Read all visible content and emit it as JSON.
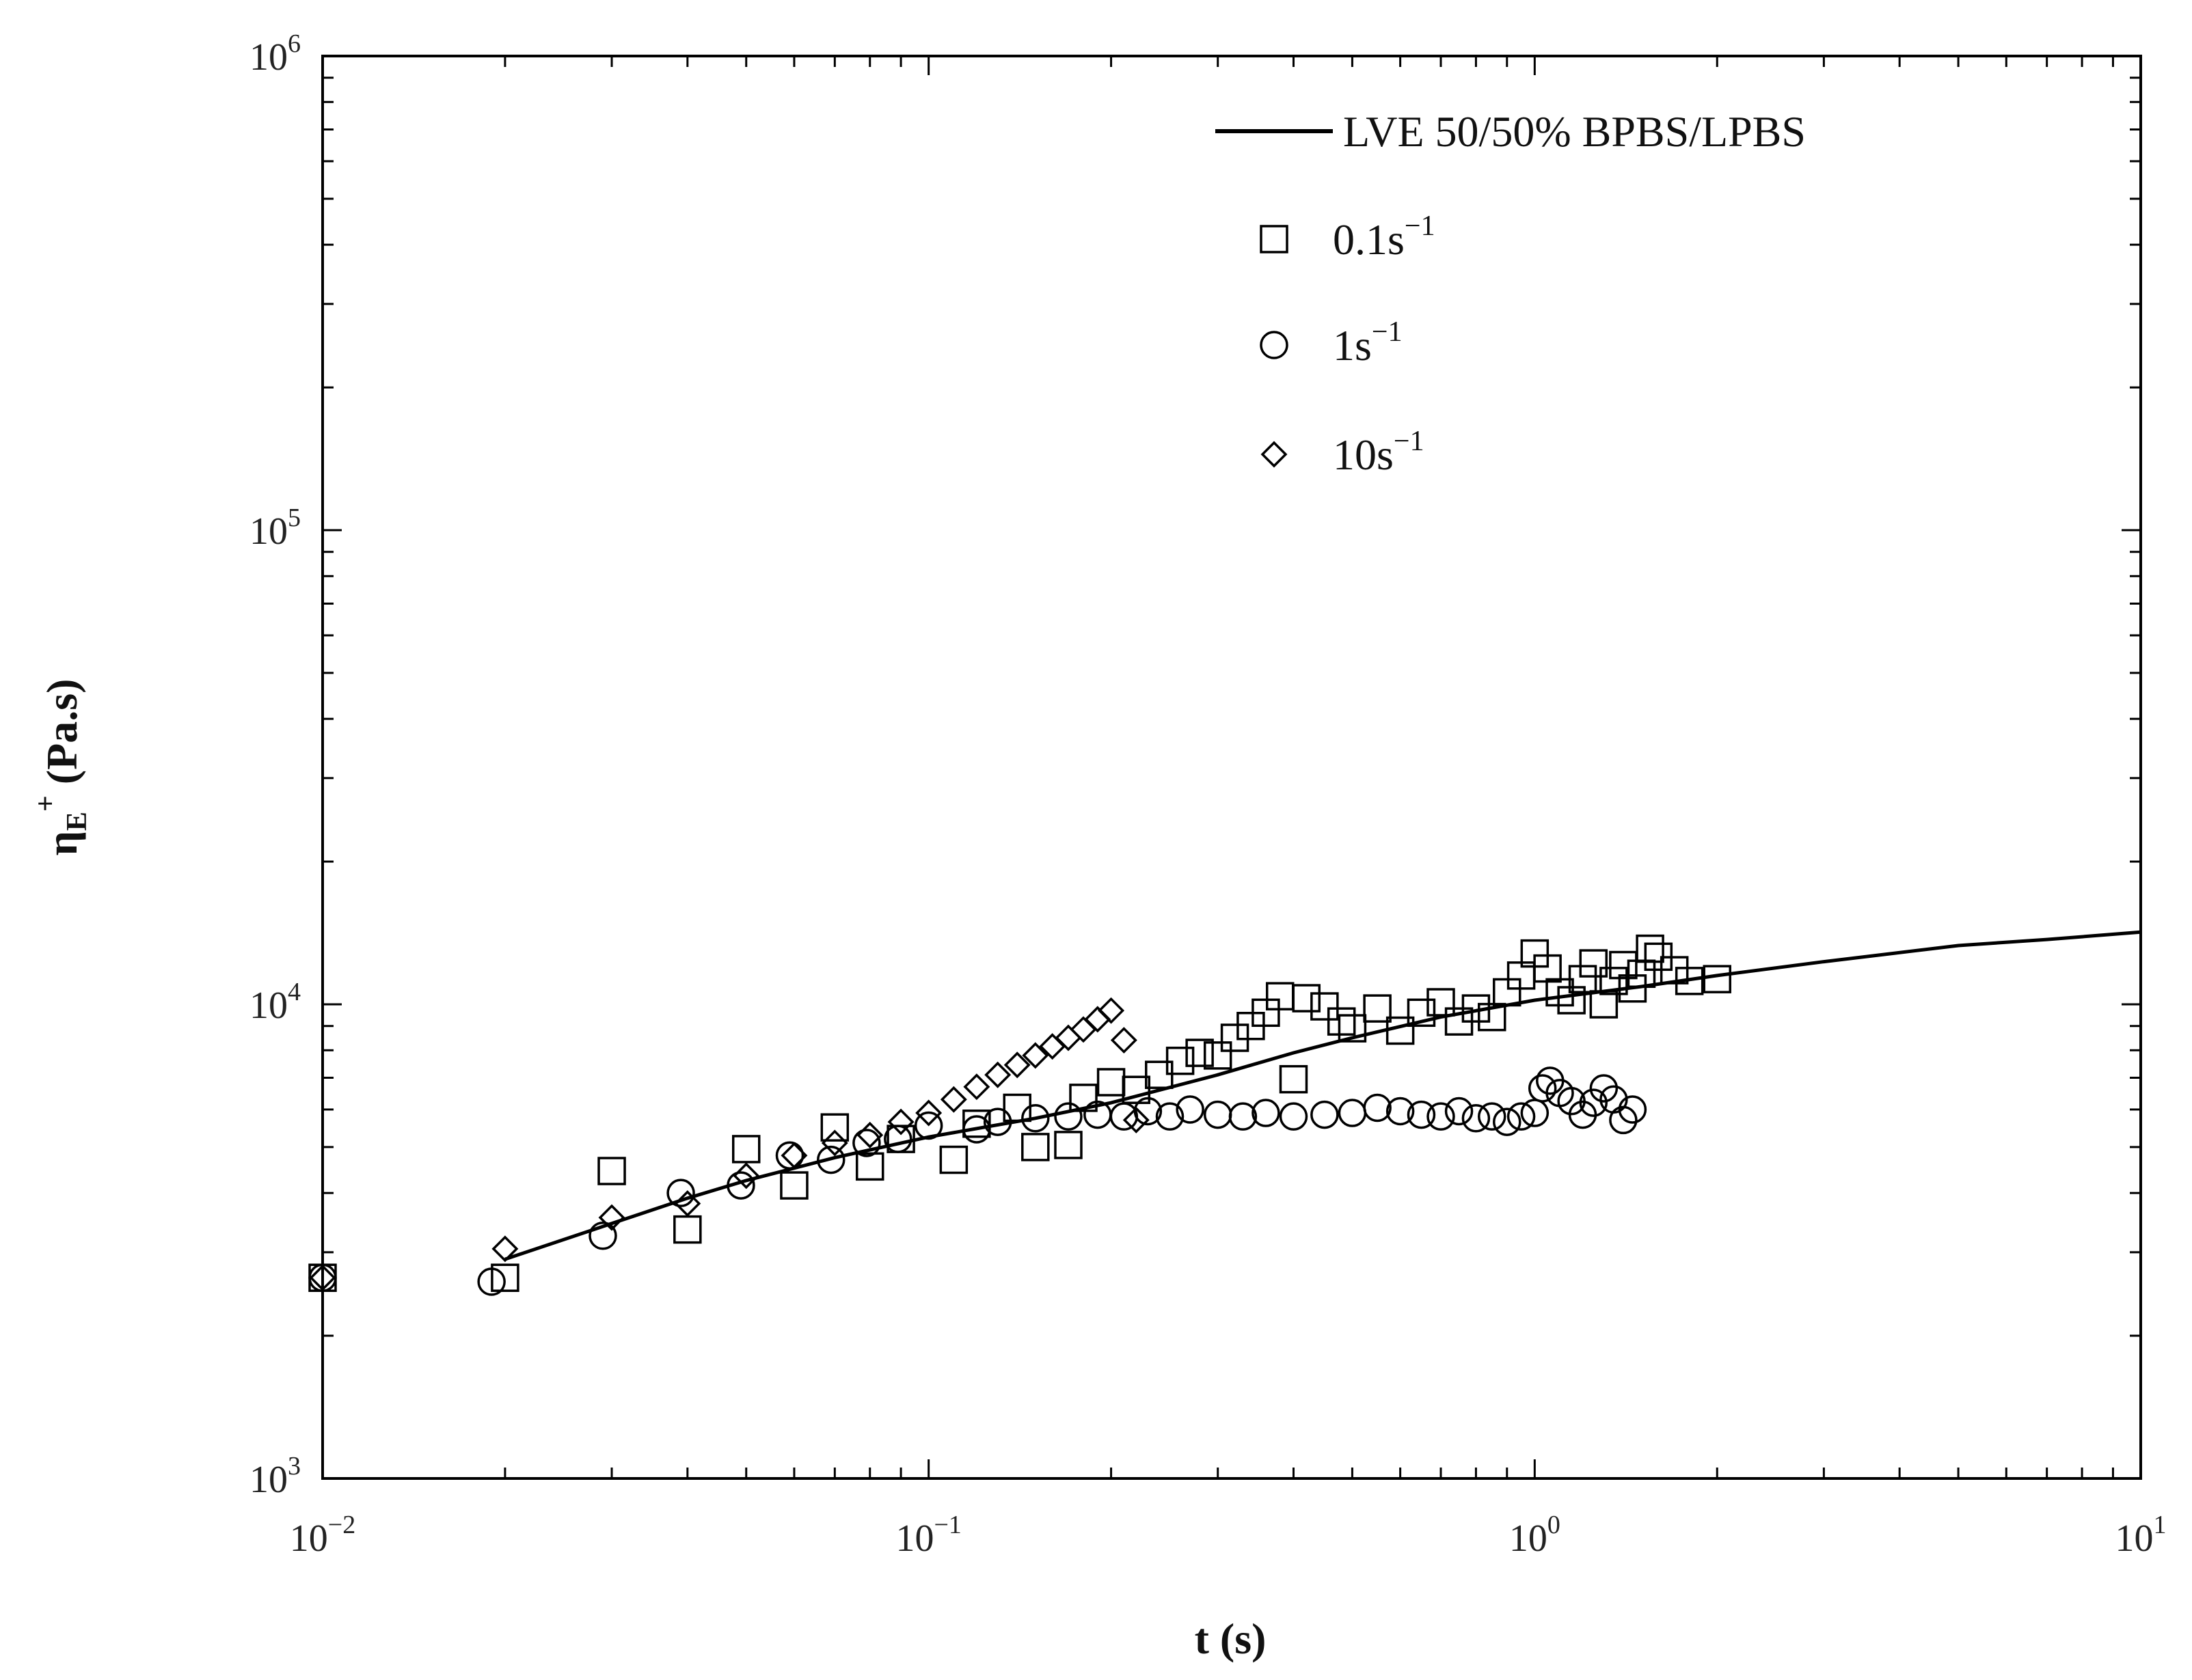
{
  "chart_data": {
    "type": "scatter",
    "title": "",
    "xlabel": "t (s)",
    "ylabel": {
      "main": "η",
      "sub": "E",
      "sup": "+",
      "unit": " (Pa.s)"
    },
    "x_scale": "log",
    "y_scale": "log",
    "xlim": [
      0.01,
      10
    ],
    "ylim": [
      1000,
      1000000
    ],
    "grid": false,
    "legend_position": "top-right",
    "x_ticks": [
      {
        "value": 0.01,
        "base": "10",
        "exp": "−2"
      },
      {
        "value": 0.1,
        "base": "10",
        "exp": "−1"
      },
      {
        "value": 1,
        "base": "10",
        "exp": "0"
      },
      {
        "value": 10,
        "base": "10",
        "exp": "1"
      }
    ],
    "y_ticks": [
      {
        "value": 1000,
        "base": "10",
        "exp": "3"
      },
      {
        "value": 10000,
        "base": "10",
        "exp": "4"
      },
      {
        "value": 100000,
        "base": "10",
        "exp": "5"
      },
      {
        "value": 1000000,
        "base": "10",
        "exp": "6"
      }
    ],
    "series": [
      {
        "name": "LVE 50/50% BPBS/LPBS",
        "kind": "line",
        "color": "#000000",
        "points": [
          [
            0.02,
            2900
          ],
          [
            0.03,
            3450
          ],
          [
            0.04,
            3900
          ],
          [
            0.05,
            4250
          ],
          [
            0.07,
            4750
          ],
          [
            0.1,
            5250
          ],
          [
            0.15,
            5750
          ],
          [
            0.2,
            6200
          ],
          [
            0.3,
            7100
          ],
          [
            0.4,
            7900
          ],
          [
            0.5,
            8500
          ],
          [
            0.7,
            9400
          ],
          [
            1,
            10200
          ],
          [
            1.5,
            10900
          ],
          [
            2,
            11500
          ],
          [
            3,
            12300
          ],
          [
            5,
            13300
          ],
          [
            7,
            13700
          ],
          [
            10,
            14200
          ]
        ]
      },
      {
        "name_main": "0.1s",
        "name_sup": "−1",
        "kind": "square",
        "color": "#000000",
        "points": [
          [
            0.01,
            2650
          ],
          [
            0.02,
            2650
          ],
          [
            0.03,
            4450
          ],
          [
            0.04,
            3350
          ],
          [
            0.05,
            4950
          ],
          [
            0.06,
            4150
          ],
          [
            0.07,
            5500
          ],
          [
            0.08,
            4550
          ],
          [
            0.09,
            5200
          ],
          [
            0.11,
            4700
          ],
          [
            0.12,
            5600
          ],
          [
            0.14,
            6050
          ],
          [
            0.15,
            5000
          ],
          [
            0.17,
            5050
          ],
          [
            0.18,
            6350
          ],
          [
            0.2,
            6850
          ],
          [
            0.22,
            6600
          ],
          [
            0.24,
            7100
          ],
          [
            0.26,
            7600
          ],
          [
            0.28,
            7900
          ],
          [
            0.3,
            7800
          ],
          [
            0.32,
            8500
          ],
          [
            0.34,
            9000
          ],
          [
            0.36,
            9600
          ],
          [
            0.38,
            10400
          ],
          [
            0.4,
            6950
          ],
          [
            0.42,
            10300
          ],
          [
            0.45,
            9900
          ],
          [
            0.48,
            9200
          ],
          [
            0.5,
            8900
          ],
          [
            0.55,
            9800
          ],
          [
            0.6,
            8800
          ],
          [
            0.65,
            9600
          ],
          [
            0.7,
            10100
          ],
          [
            0.75,
            9200
          ],
          [
            0.8,
            9800
          ],
          [
            0.85,
            9400
          ],
          [
            0.9,
            10600
          ],
          [
            0.95,
            11500
          ],
          [
            1.0,
            12800
          ],
          [
            1.05,
            11900
          ],
          [
            1.1,
            10600
          ],
          [
            1.15,
            10200
          ],
          [
            1.2,
            11300
          ],
          [
            1.25,
            12200
          ],
          [
            1.3,
            10000
          ],
          [
            1.35,
            11200
          ],
          [
            1.4,
            12100
          ],
          [
            1.45,
            10800
          ],
          [
            1.5,
            11600
          ],
          [
            1.55,
            13100
          ],
          [
            1.6,
            12600
          ],
          [
            1.7,
            11800
          ],
          [
            1.8,
            11200
          ],
          [
            2.0,
            11300
          ]
        ]
      },
      {
        "name_main": "1s",
        "name_sup": "−1",
        "kind": "circle",
        "color": "#000000",
        "points": [
          [
            0.01,
            2650
          ],
          [
            0.019,
            2600
          ],
          [
            0.029,
            3250
          ],
          [
            0.039,
            4000
          ],
          [
            0.049,
            4150
          ],
          [
            0.059,
            4800
          ],
          [
            0.069,
            4700
          ],
          [
            0.079,
            5100
          ],
          [
            0.089,
            5200
          ],
          [
            0.1,
            5550
          ],
          [
            0.12,
            5450
          ],
          [
            0.13,
            5650
          ],
          [
            0.15,
            5750
          ],
          [
            0.17,
            5800
          ],
          [
            0.19,
            5850
          ],
          [
            0.21,
            5800
          ],
          [
            0.23,
            5950
          ],
          [
            0.25,
            5800
          ],
          [
            0.27,
            6000
          ],
          [
            0.3,
            5850
          ],
          [
            0.33,
            5800
          ],
          [
            0.36,
            5900
          ],
          [
            0.4,
            5800
          ],
          [
            0.45,
            5850
          ],
          [
            0.5,
            5900
          ],
          [
            0.55,
            6050
          ],
          [
            0.6,
            5950
          ],
          [
            0.65,
            5850
          ],
          [
            0.7,
            5800
          ],
          [
            0.75,
            5950
          ],
          [
            0.8,
            5750
          ],
          [
            0.85,
            5800
          ],
          [
            0.9,
            5650
          ],
          [
            0.95,
            5800
          ],
          [
            1.0,
            5900
          ],
          [
            1.03,
            6650
          ],
          [
            1.06,
            6900
          ],
          [
            1.1,
            6500
          ],
          [
            1.15,
            6250
          ],
          [
            1.2,
            5850
          ],
          [
            1.25,
            6200
          ],
          [
            1.3,
            6650
          ],
          [
            1.35,
            6300
          ],
          [
            1.4,
            5700
          ],
          [
            1.45,
            6000
          ]
        ]
      },
      {
        "name_main": "10s",
        "name_sup": "−1",
        "kind": "diamond",
        "color": "#000000",
        "points": [
          [
            0.01,
            2650
          ],
          [
            0.02,
            3050
          ],
          [
            0.03,
            3550
          ],
          [
            0.04,
            3800
          ],
          [
            0.05,
            4350
          ],
          [
            0.06,
            4800
          ],
          [
            0.07,
            5100
          ],
          [
            0.08,
            5300
          ],
          [
            0.09,
            5650
          ],
          [
            0.1,
            5900
          ],
          [
            0.11,
            6300
          ],
          [
            0.12,
            6700
          ],
          [
            0.13,
            7100
          ],
          [
            0.14,
            7450
          ],
          [
            0.15,
            7800
          ],
          [
            0.16,
            8150
          ],
          [
            0.17,
            8500
          ],
          [
            0.18,
            8850
          ],
          [
            0.19,
            9300
          ],
          [
            0.2,
            9700
          ],
          [
            0.21,
            8400
          ],
          [
            0.22,
            5700
          ]
        ]
      }
    ]
  }
}
